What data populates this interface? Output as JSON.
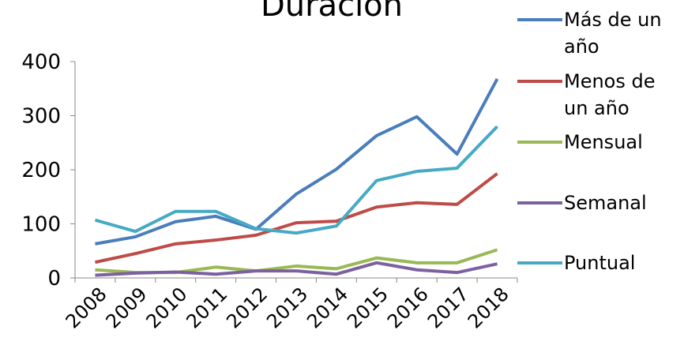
{
  "chart_data": {
    "type": "line",
    "title": "Duración",
    "categories": [
      "2008",
      "2009",
      "2010",
      "2011",
      "2012",
      "2013",
      "2014",
      "2015",
      "2016",
      "2017",
      "2018"
    ],
    "series": [
      {
        "name": "Más de un año",
        "color": "#4a7ebb",
        "values": [
          63,
          76,
          104,
          114,
          90,
          155,
          201,
          263,
          298,
          229,
          368
        ]
      },
      {
        "name": "Menos de un año",
        "color": "#be4b48",
        "values": [
          29,
          45,
          63,
          70,
          79,
          102,
          105,
          131,
          139,
          136,
          193
        ]
      },
      {
        "name": "Mensual",
        "color": "#98b954",
        "values": [
          15,
          10,
          10,
          20,
          13,
          22,
          17,
          37,
          28,
          28,
          52
        ]
      },
      {
        "name": "Semanal",
        "color": "#7d60a0",
        "values": [
          5,
          9,
          11,
          7,
          13,
          13,
          7,
          28,
          15,
          10,
          26
        ]
      },
      {
        "name": "Puntual",
        "color": "#46aac5",
        "values": [
          107,
          86,
          123,
          123,
          91,
          83,
          96,
          180,
          197,
          203,
          280
        ]
      }
    ],
    "ylim": [
      0,
      400
    ],
    "yticks": [
      0,
      100,
      200,
      300,
      400
    ],
    "grid": false,
    "legend": "right"
  }
}
